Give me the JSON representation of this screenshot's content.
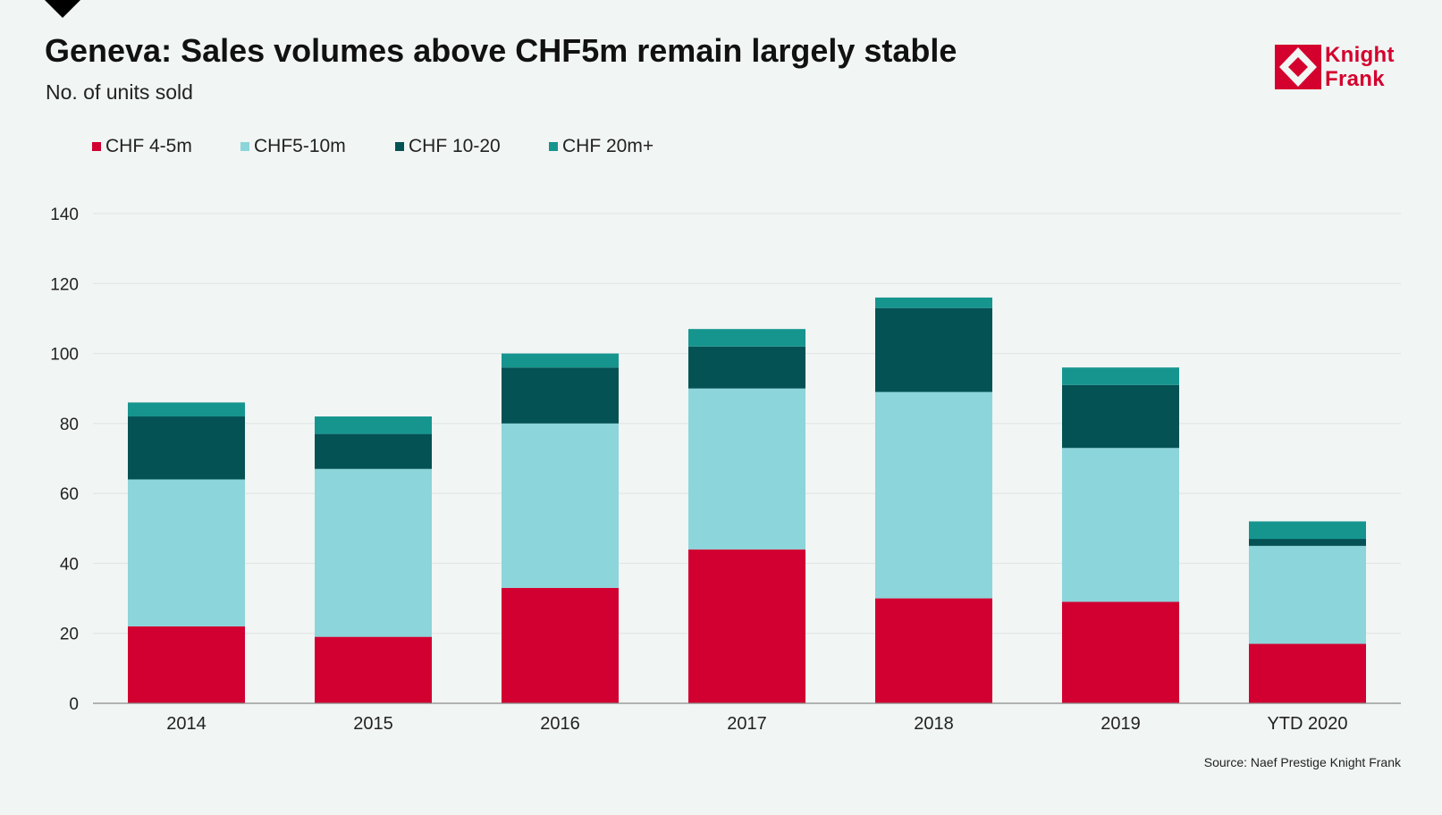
{
  "title": "Geneva: Sales volumes above CHF5m remain largely stable",
  "subtitle": "No. of units sold",
  "source": "Source: Naef Prestige Knight Frank",
  "logo": {
    "line1": "Knight",
    "line2": "Frank",
    "color": "#d4002d"
  },
  "chart_data": {
    "type": "bar",
    "stacked": true,
    "categories": [
      "2014",
      "2015",
      "2016",
      "2017",
      "2018",
      "2019",
      "YTD 2020"
    ],
    "series": [
      {
        "name": "CHF 4-5m",
        "color": "#d10031",
        "values": [
          22,
          19,
          33,
          44,
          30,
          29,
          17
        ]
      },
      {
        "name": "CHF5-10m",
        "color": "#8cd5da",
        "values": [
          42,
          48,
          47,
          46,
          59,
          44,
          28
        ]
      },
      {
        "name": "CHF 10-20",
        "color": "#045254",
        "values": [
          18,
          10,
          16,
          12,
          24,
          18,
          2
        ]
      },
      {
        "name": "CHF 20m+",
        "color": "#16958f",
        "values": [
          4,
          5,
          4,
          5,
          3,
          5,
          5
        ]
      }
    ],
    "ylim": [
      0,
      140
    ],
    "yticks": [
      0,
      20,
      40,
      60,
      80,
      100,
      120,
      140
    ],
    "grid": true,
    "legend_position": "top-left"
  }
}
